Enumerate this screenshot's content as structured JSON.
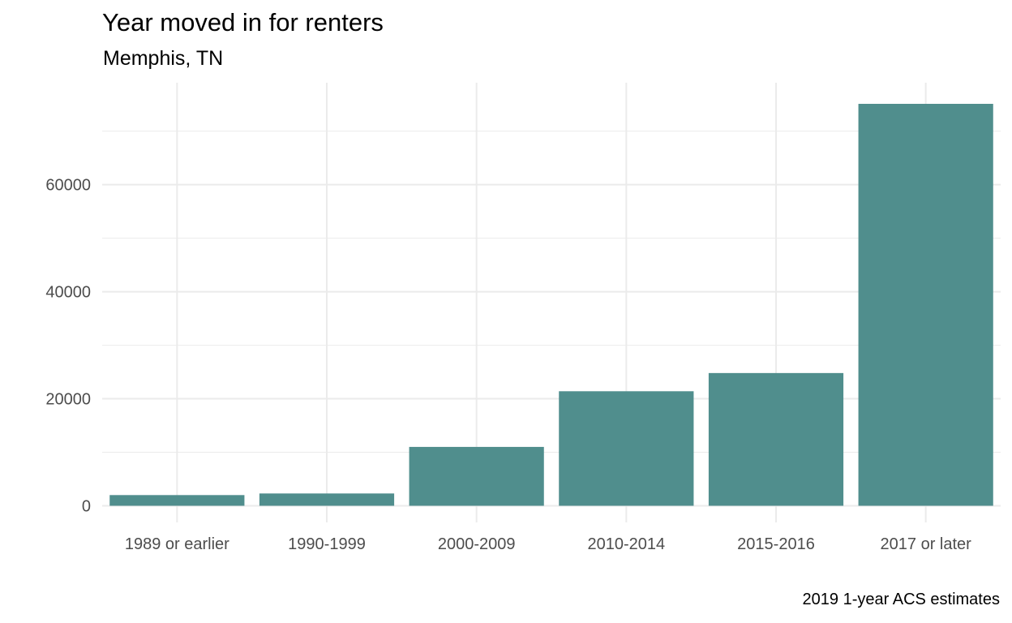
{
  "chart_data": {
    "type": "bar",
    "title": "Year moved in for renters",
    "subtitle": "Memphis, TN",
    "caption": "2019 1-year ACS estimates",
    "xlabel": "",
    "ylabel": "",
    "categories": [
      "1989 or earlier",
      "1990-1999",
      "2000-2009",
      "2010-2014",
      "2015-2016",
      "2017 or later"
    ],
    "values": [
      2000,
      2300,
      11000,
      21400,
      24800,
      75100
    ],
    "ylim": [
      0,
      75100
    ],
    "y_ticks": [
      0,
      20000,
      40000,
      60000
    ],
    "y_tick_labels": [
      "0",
      "20000",
      "40000",
      "60000"
    ],
    "grid": true,
    "legend": "none",
    "bar_color": "#508e8d",
    "grid_color": "#ebebeb"
  }
}
